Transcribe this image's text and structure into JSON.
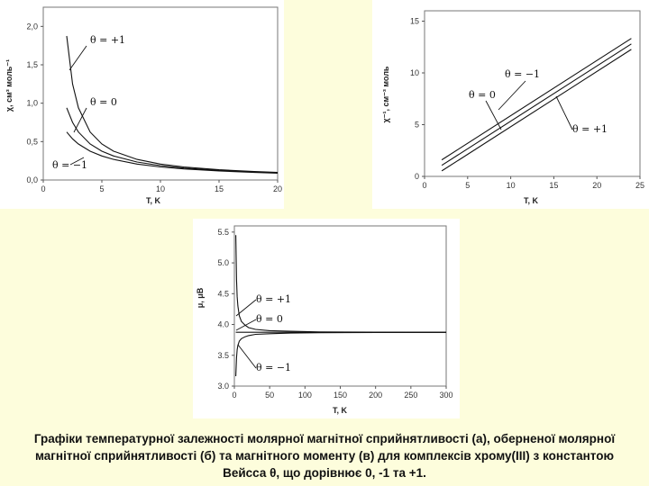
{
  "caption": "Графіки температурної залежності молярної магнітної сприйнятливості (а), оберненої молярної магнітної сприйнятливості (б) та магнітного моменту (в) для комплексів хрому(ІІІ) з константою Вейсса θ, що дорівнює 0, -1 та +1.",
  "chart_data": [
    {
      "id": "a",
      "type": "line",
      "xlabel": "T, K",
      "ylabel": "χ, см³ моль⁻¹",
      "xlim": [
        0,
        20
      ],
      "ylim": [
        0,
        2.25
      ],
      "xticks": [
        "0",
        "5",
        "10",
        "15",
        "20"
      ],
      "yticks": [
        "0,0",
        "0,5",
        "1,0",
        "1,5",
        "2,0"
      ],
      "series": [
        {
          "name": "θ = +1",
          "x": [
            2,
            2.5,
            3,
            4,
            5,
            6,
            8,
            10,
            12,
            15,
            18,
            20
          ],
          "y": [
            1.875,
            1.25,
            0.94,
            0.625,
            0.469,
            0.375,
            0.268,
            0.208,
            0.17,
            0.134,
            0.11,
            0.099
          ]
        },
        {
          "name": "θ = 0",
          "x": [
            2,
            2.5,
            3,
            4,
            5,
            6,
            8,
            10,
            12,
            15,
            18,
            20
          ],
          "y": [
            0.94,
            0.75,
            0.625,
            0.469,
            0.375,
            0.313,
            0.234,
            0.188,
            0.156,
            0.125,
            0.104,
            0.094
          ]
        },
        {
          "name": "θ = −1",
          "x": [
            2,
            2.5,
            3,
            4,
            5,
            6,
            8,
            10,
            12,
            15,
            18,
            20
          ],
          "y": [
            0.625,
            0.536,
            0.469,
            0.375,
            0.313,
            0.268,
            0.208,
            0.17,
            0.144,
            0.117,
            0.099,
            0.089
          ]
        }
      ],
      "annotations": [
        "θ = +1",
        "θ = 0",
        "θ = −1"
      ]
    },
    {
      "id": "b",
      "type": "line",
      "xlabel": "T, K",
      "ylabel": "χ⁻¹, см⁻³ моль",
      "xlim": [
        0,
        25
      ],
      "ylim": [
        0,
        16
      ],
      "xticks": [
        "0",
        "5",
        "10",
        "15",
        "20",
        "25"
      ],
      "yticks": [
        "0",
        "5",
        "10",
        "15"
      ],
      "series": [
        {
          "name": "θ = −1",
          "x": [
            2,
            24
          ],
          "y": [
            1.6,
            13.33
          ]
        },
        {
          "name": "θ = 0",
          "x": [
            2,
            24
          ],
          "y": [
            1.07,
            12.8
          ]
        },
        {
          "name": "θ = +1",
          "x": [
            2,
            24
          ],
          "y": [
            0.53,
            12.27
          ]
        }
      ],
      "annotations": [
        "θ = −1",
        "θ = 0",
        "θ = +1"
      ]
    },
    {
      "id": "c",
      "type": "line",
      "xlabel": "T, K",
      "ylabel": "μ, μB",
      "xlim": [
        0,
        300
      ],
      "ylim": [
        3.0,
        5.6
      ],
      "xticks": [
        "0",
        "50",
        "100",
        "150",
        "200",
        "250",
        "300"
      ],
      "yticks": [
        "3.0",
        "3.5",
        "4.0",
        "4.5",
        "5.0",
        "5.5"
      ],
      "series": [
        {
          "name": "θ = +1",
          "x": [
            2,
            3,
            4,
            5,
            7,
            10,
            15,
            20,
            30,
            50,
            80,
            120,
            200,
            300
          ],
          "y": [
            5.45,
            4.73,
            4.45,
            4.3,
            4.14,
            4.05,
            3.99,
            3.95,
            3.92,
            3.9,
            3.89,
            3.88,
            3.875,
            3.873
          ]
        },
        {
          "name": "θ = 0",
          "x": [
            2,
            300
          ],
          "y": [
            3.873,
            3.873
          ]
        },
        {
          "name": "θ = −1",
          "x": [
            2,
            3,
            4,
            5,
            7,
            10,
            15,
            20,
            30,
            50,
            80,
            120,
            200,
            300
          ],
          "y": [
            3.16,
            3.46,
            3.59,
            3.66,
            3.73,
            3.77,
            3.8,
            3.82,
            3.84,
            3.85,
            3.86,
            3.866,
            3.87,
            3.872
          ]
        }
      ],
      "annotations": [
        "θ = +1",
        "θ = 0",
        "θ = −1"
      ]
    }
  ]
}
